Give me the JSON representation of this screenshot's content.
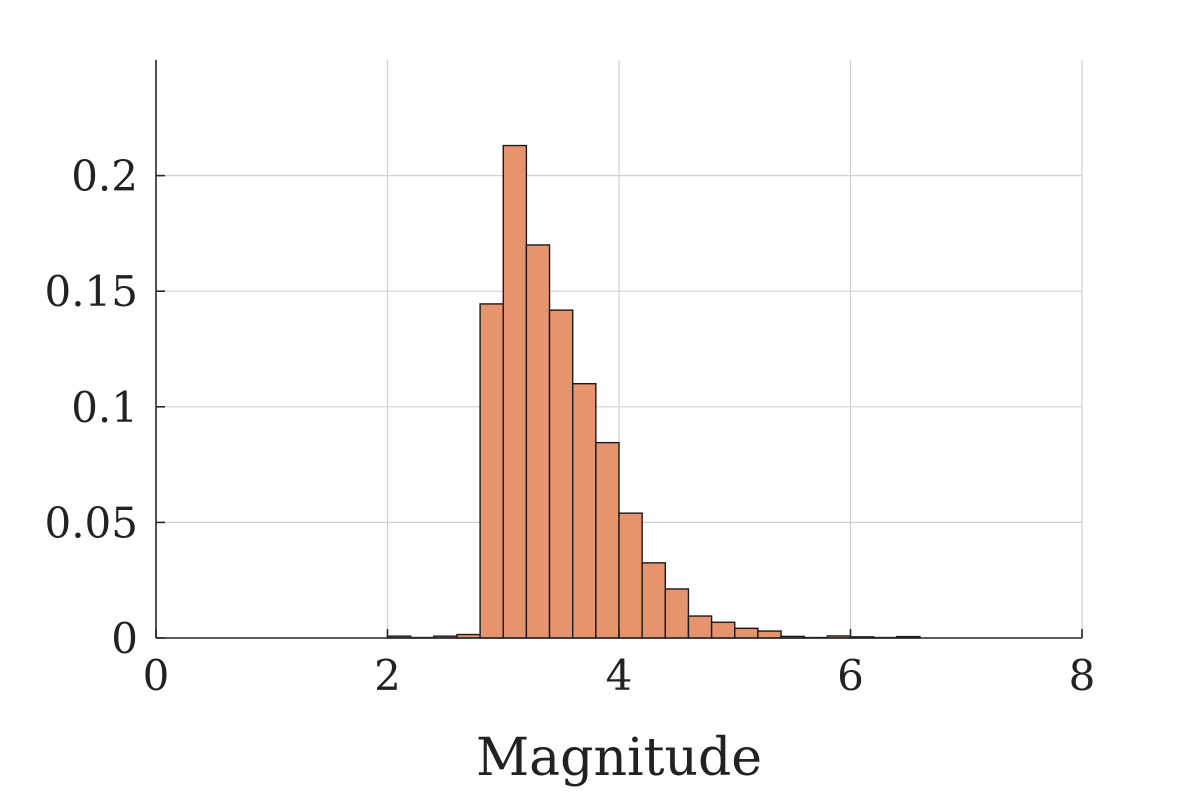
{
  "chart_data": {
    "type": "bar",
    "title": "",
    "xlabel": "Magnitude",
    "ylabel": "",
    "xlim": [
      0,
      8
    ],
    "ylim": [
      0,
      0.25
    ],
    "xticks": [
      "0",
      "2",
      "4",
      "6",
      "8"
    ],
    "yticks": [
      "0",
      "0.05",
      "0.1",
      "0.15",
      "0.2"
    ],
    "grid": true,
    "bin_width": 0.2,
    "bar_color": "#e6946e",
    "bins": [
      {
        "x0": 2.0,
        "x1": 2.2,
        "value": 0.0008
      },
      {
        "x0": 2.2,
        "x1": 2.4,
        "value": 0.0002
      },
      {
        "x0": 2.4,
        "x1": 2.6,
        "value": 0.0008
      },
      {
        "x0": 2.6,
        "x1": 2.8,
        "value": 0.0015
      },
      {
        "x0": 2.8,
        "x1": 3.0,
        "value": 0.1445
      },
      {
        "x0": 3.0,
        "x1": 3.2,
        "value": 0.213
      },
      {
        "x0": 3.2,
        "x1": 3.4,
        "value": 0.17
      },
      {
        "x0": 3.4,
        "x1": 3.6,
        "value": 0.1418
      },
      {
        "x0": 3.6,
        "x1": 3.8,
        "value": 0.11
      },
      {
        "x0": 3.8,
        "x1": 4.0,
        "value": 0.0845
      },
      {
        "x0": 4.0,
        "x1": 4.2,
        "value": 0.054
      },
      {
        "x0": 4.2,
        "x1": 4.4,
        "value": 0.0325
      },
      {
        "x0": 4.4,
        "x1": 4.6,
        "value": 0.0212
      },
      {
        "x0": 4.6,
        "x1": 4.8,
        "value": 0.0095
      },
      {
        "x0": 4.8,
        "x1": 5.0,
        "value": 0.0068
      },
      {
        "x0": 5.0,
        "x1": 5.2,
        "value": 0.0042
      },
      {
        "x0": 5.2,
        "x1": 5.4,
        "value": 0.003
      },
      {
        "x0": 5.4,
        "x1": 5.6,
        "value": 0.0007
      },
      {
        "x0": 5.6,
        "x1": 5.8,
        "value": 0.0002
      },
      {
        "x0": 5.8,
        "x1": 6.0,
        "value": 0.0009
      },
      {
        "x0": 6.0,
        "x1": 6.2,
        "value": 0.0005
      },
      {
        "x0": 6.2,
        "x1": 6.4,
        "value": 0.0002
      },
      {
        "x0": 6.4,
        "x1": 6.6,
        "value": 0.0006
      }
    ]
  }
}
